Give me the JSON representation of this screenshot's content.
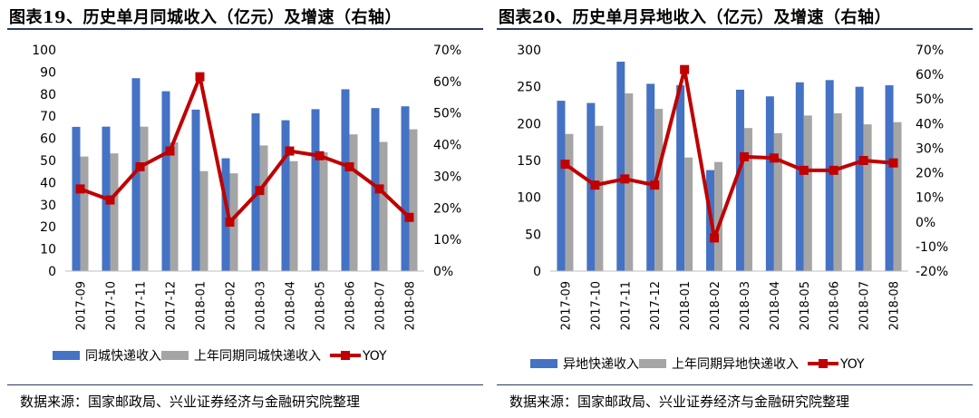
{
  "chart_data": [
    {
      "id": "left",
      "type": "bar",
      "title": "图表19、历史单月同城收入（亿元）及增速（右轴）",
      "source": "数据来源：国家邮政局、兴业证券经济与金融研究院整理",
      "categories": [
        "2017-09",
        "2017-10",
        "2017-11",
        "2017-12",
        "2018-01",
        "2018-02",
        "2018-03",
        "2018-04",
        "2018-05",
        "2018-06",
        "2018-07",
        "2018-08"
      ],
      "ylim": [
        0,
        100
      ],
      "yticks": [
        0,
        10,
        20,
        30,
        40,
        50,
        60,
        70,
        80,
        90,
        100
      ],
      "y2lim": [
        0,
        70
      ],
      "y2ticks": [
        0,
        10,
        20,
        30,
        40,
        50,
        60,
        70
      ],
      "y2_format": "percent",
      "series": [
        {
          "name": "同城快递收入",
          "kind": "bar",
          "axis": "left",
          "color": "#4472c4",
          "values": [
            65.2,
            65.3,
            87.2,
            81.3,
            73.0,
            51.0,
            71.3,
            68.2,
            73.2,
            82.2,
            73.7,
            74.5
          ]
        },
        {
          "name": "上年同期同城快递收入",
          "kind": "bar",
          "axis": "left",
          "color": "#a5a5a5",
          "values": [
            51.8,
            53.2,
            65.3,
            58.2,
            45.2,
            44.2,
            56.8,
            49.7,
            53.7,
            61.8,
            58.4,
            64.1
          ]
        },
        {
          "name": "YOY",
          "kind": "line",
          "axis": "right",
          "color": "#c00000",
          "values": [
            26,
            22.5,
            33,
            38,
            61.5,
            15.5,
            25.5,
            38,
            36.5,
            33,
            26,
            17
          ]
        }
      ]
    },
    {
      "id": "right",
      "type": "bar",
      "title": "图表20、历史单月异地收入（亿元）及增速（右轴）",
      "source": "数据来源：国家邮政局、兴业证券经济与金融研究院整理",
      "categories": [
        "2017-09",
        "2017-10",
        "2017-11",
        "2017-12",
        "2018-01",
        "2018-02",
        "2018-03",
        "2018-04",
        "2018-05",
        "2018-06",
        "2018-07",
        "2018-08"
      ],
      "ylim": [
        0,
        300
      ],
      "yticks": [
        0,
        50,
        100,
        150,
        200,
        250,
        300
      ],
      "y2lim": [
        -20,
        70
      ],
      "y2ticks": [
        -20,
        -10,
        0,
        10,
        20,
        30,
        40,
        50,
        60,
        70
      ],
      "y2_format": "percent",
      "series": [
        {
          "name": "异地快递收入",
          "kind": "bar",
          "axis": "left",
          "color": "#4472c4",
          "values": [
            231,
            228,
            284,
            254,
            252,
            137,
            246,
            237,
            256,
            259,
            250,
            252
          ]
        },
        {
          "name": "上年同期异地快递收入",
          "kind": "bar",
          "axis": "left",
          "color": "#a5a5a5",
          "values": [
            186,
            197,
            241,
            220,
            154,
            148,
            194,
            187,
            211,
            214,
            199,
            202
          ]
        },
        {
          "name": "YOY",
          "kind": "line",
          "axis": "right",
          "color": "#c00000",
          "values": [
            23.5,
            15,
            17.5,
            15,
            62,
            -6.5,
            26.5,
            26,
            21,
            21,
            25,
            24
          ]
        }
      ]
    }
  ]
}
